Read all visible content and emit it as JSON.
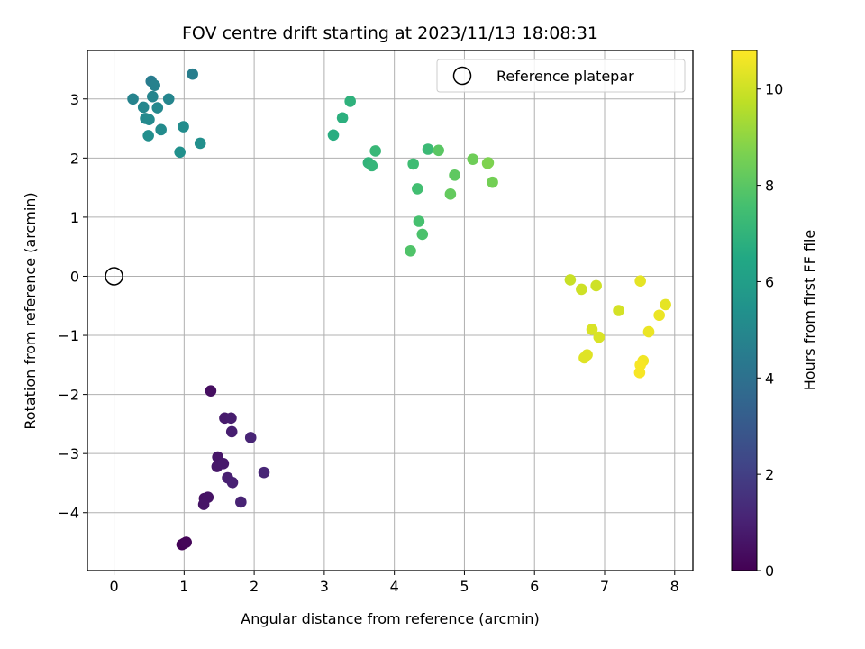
{
  "chart_data": {
    "type": "scatter",
    "title": "FOV centre drift starting at 2023/11/13 18:08:31",
    "xlabel": "Angular distance from reference (arcmin)",
    "ylabel": "Rotation from reference (arcmin)",
    "colorbar_label": "Hours from first FF file",
    "xlim": [
      -0.38,
      8.26
    ],
    "ylim": [
      -4.98,
      3.82
    ],
    "clim": [
      0,
      10.8
    ],
    "colormap": "viridis",
    "x_ticks": [
      0,
      1,
      2,
      3,
      4,
      5,
      6,
      7,
      8
    ],
    "y_ticks": [
      -4,
      -3,
      -2,
      -1,
      0,
      1,
      2,
      3
    ],
    "colorbar_ticks": [
      0,
      2,
      4,
      6,
      8,
      10
    ],
    "grid": true,
    "legend": {
      "placement": "top-right",
      "entries": [
        "Reference platepar"
      ]
    },
    "reference_point": {
      "x": 0,
      "y": 0,
      "label": "Reference platepar"
    },
    "points": [
      {
        "x": 0.97,
        "y": -4.54,
        "h": 0.05
      },
      {
        "x": 1.0,
        "y": -4.52,
        "h": 0.1
      },
      {
        "x": 1.03,
        "y": -4.5,
        "h": 0.15
      },
      {
        "x": 1.38,
        "y": -1.94,
        "h": 0.4
      },
      {
        "x": 1.29,
        "y": -3.76,
        "h": 0.5
      },
      {
        "x": 1.34,
        "y": -3.74,
        "h": 0.55
      },
      {
        "x": 1.28,
        "y": -3.86,
        "h": 0.6
      },
      {
        "x": 1.48,
        "y": -3.06,
        "h": 0.65
      },
      {
        "x": 1.47,
        "y": -3.22,
        "h": 0.7
      },
      {
        "x": 1.56,
        "y": -3.17,
        "h": 0.75
      },
      {
        "x": 1.58,
        "y": -2.4,
        "h": 0.8
      },
      {
        "x": 1.67,
        "y": -2.4,
        "h": 0.85
      },
      {
        "x": 1.68,
        "y": -2.63,
        "h": 0.9
      },
      {
        "x": 1.62,
        "y": -3.41,
        "h": 0.95
      },
      {
        "x": 1.69,
        "y": -3.49,
        "h": 1.0
      },
      {
        "x": 1.81,
        "y": -3.82,
        "h": 1.05
      },
      {
        "x": 1.95,
        "y": -2.73,
        "h": 1.1
      },
      {
        "x": 2.14,
        "y": -3.32,
        "h": 1.15
      },
      {
        "x": 0.53,
        "y": 3.3,
        "h": 4.5
      },
      {
        "x": 1.12,
        "y": 3.42,
        "h": 4.6
      },
      {
        "x": 0.58,
        "y": 3.23,
        "h": 4.7
      },
      {
        "x": 0.27,
        "y": 3.0,
        "h": 4.8
      },
      {
        "x": 0.55,
        "y": 3.04,
        "h": 4.85
      },
      {
        "x": 0.78,
        "y": 3.0,
        "h": 4.9
      },
      {
        "x": 0.42,
        "y": 2.86,
        "h": 4.95
      },
      {
        "x": 0.62,
        "y": 2.85,
        "h": 5.0
      },
      {
        "x": 0.45,
        "y": 2.67,
        "h": 5.05
      },
      {
        "x": 0.5,
        "y": 2.65,
        "h": 5.1
      },
      {
        "x": 0.67,
        "y": 2.48,
        "h": 5.15
      },
      {
        "x": 0.99,
        "y": 2.53,
        "h": 5.2
      },
      {
        "x": 0.49,
        "y": 2.38,
        "h": 5.25
      },
      {
        "x": 1.23,
        "y": 2.25,
        "h": 5.3
      },
      {
        "x": 0.94,
        "y": 2.1,
        "h": 5.35
      },
      {
        "x": 3.13,
        "y": 2.39,
        "h": 6.7
      },
      {
        "x": 3.26,
        "y": 2.68,
        "h": 6.8
      },
      {
        "x": 3.37,
        "y": 2.96,
        "h": 6.9
      },
      {
        "x": 3.63,
        "y": 1.92,
        "h": 7.0
      },
      {
        "x": 3.68,
        "y": 1.87,
        "h": 7.1
      },
      {
        "x": 3.73,
        "y": 2.12,
        "h": 7.2
      },
      {
        "x": 4.48,
        "y": 2.15,
        "h": 7.3
      },
      {
        "x": 4.27,
        "y": 1.9,
        "h": 7.4
      },
      {
        "x": 4.33,
        "y": 1.48,
        "h": 7.5
      },
      {
        "x": 4.35,
        "y": 0.93,
        "h": 7.6
      },
      {
        "x": 4.4,
        "y": 0.71,
        "h": 7.7
      },
      {
        "x": 4.23,
        "y": 0.43,
        "h": 7.8
      },
      {
        "x": 4.63,
        "y": 2.13,
        "h": 8.0
      },
      {
        "x": 4.86,
        "y": 1.71,
        "h": 8.1
      },
      {
        "x": 4.8,
        "y": 1.39,
        "h": 8.2
      },
      {
        "x": 5.12,
        "y": 1.98,
        "h": 8.4
      },
      {
        "x": 5.34,
        "y": 1.92,
        "h": 8.6
      },
      {
        "x": 5.33,
        "y": 1.91,
        "h": 8.7
      },
      {
        "x": 5.4,
        "y": 1.59,
        "h": 8.5
      },
      {
        "x": 6.51,
        "y": -0.06,
        "h": 9.9
      },
      {
        "x": 6.67,
        "y": -0.22,
        "h": 10.0
      },
      {
        "x": 6.88,
        "y": -0.16,
        "h": 10.0
      },
      {
        "x": 7.2,
        "y": -0.58,
        "h": 10.1
      },
      {
        "x": 6.82,
        "y": -0.9,
        "h": 10.2
      },
      {
        "x": 6.92,
        "y": -1.03,
        "h": 10.2
      },
      {
        "x": 6.75,
        "y": -1.33,
        "h": 10.3
      },
      {
        "x": 6.71,
        "y": -1.38,
        "h": 10.3
      },
      {
        "x": 7.51,
        "y": -0.08,
        "h": 10.4
      },
      {
        "x": 7.87,
        "y": -0.48,
        "h": 10.4
      },
      {
        "x": 7.78,
        "y": -0.66,
        "h": 10.5
      },
      {
        "x": 7.63,
        "y": -0.94,
        "h": 10.5
      },
      {
        "x": 7.55,
        "y": -1.43,
        "h": 10.6
      },
      {
        "x": 7.51,
        "y": -1.5,
        "h": 10.7
      },
      {
        "x": 7.5,
        "y": -1.63,
        "h": 10.7
      }
    ]
  }
}
